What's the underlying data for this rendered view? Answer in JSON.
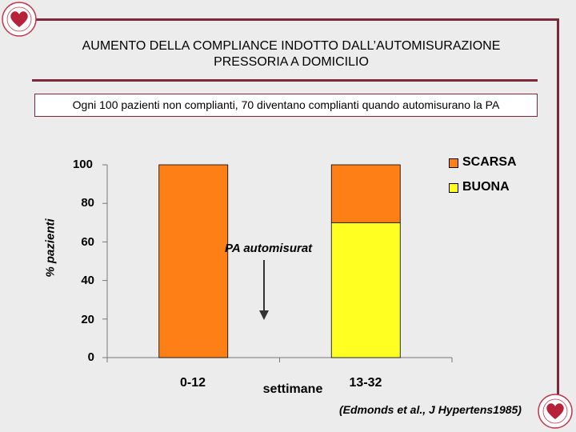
{
  "title_line1": "AUMENTO DELLA COMPLIANCE INDOTTO DALL’AUTOMISURAZIONE",
  "title_line2": "PRESSORIA A DOMICILIO",
  "subtitle": "Ogni 100 pazienti non complianti, 70 diventano complianti quando automisurano la PA",
  "annotation": "PA automisurat",
  "source": "(Edmonds et al., J Hypertens1985)",
  "colors": {
    "frame": "#7a2a3a",
    "scarsa": "#ff7f17",
    "buona": "#ffff22"
  },
  "chart_data": {
    "type": "bar",
    "stacked": true,
    "xlabel": "settimane",
    "ylabel": "% pazienti",
    "categories": [
      "0-12",
      "13-32"
    ],
    "series": [
      {
        "name": "BUONA",
        "color": "#ffff22",
        "values": [
          0,
          70
        ]
      },
      {
        "name": "SCARSA",
        "color": "#ff7f17",
        "values": [
          100,
          30
        ]
      }
    ],
    "ylim": [
      0,
      100
    ],
    "yticks": [
      "0",
      "20",
      "40",
      "60",
      "80",
      "100"
    ],
    "legend_position": "top-right",
    "grid": false
  }
}
